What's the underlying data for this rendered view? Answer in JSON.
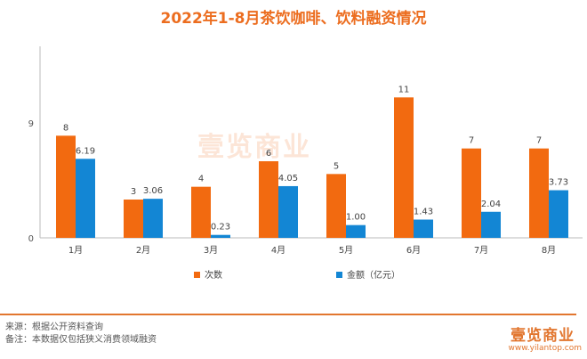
{
  "title": "2022年1-8月茶饮咖啡、饮料融资情况",
  "chart_data": {
    "type": "bar",
    "title": "2022年1-8月茶饮咖啡、饮料融资情况",
    "categories": [
      "1月",
      "2月",
      "3月",
      "4月",
      "5月",
      "6月",
      "7月",
      "8月"
    ],
    "series": [
      {
        "name": "次数",
        "values": [
          8,
          3,
          4,
          6,
          5,
          11,
          7,
          7
        ],
        "labels": [
          "8",
          "3",
          "4",
          "6",
          "5",
          "11",
          "7",
          "7"
        ],
        "color": "#f26a10"
      },
      {
        "name": "金额（亿元）",
        "values": [
          6.19,
          3.06,
          0.23,
          4.05,
          1.0,
          1.43,
          2.04,
          3.73
        ],
        "labels": [
          "6.19",
          "3.06",
          "0.23",
          "4.05",
          "1.00",
          "1.43",
          "2.04",
          "3.73"
        ],
        "color": "#1386d4"
      }
    ],
    "yticks": [
      "0",
      "9"
    ],
    "ylim": [
      0,
      15
    ],
    "grid": false,
    "legend": "bottom"
  },
  "watermark": "壹览商业",
  "footer": {
    "source": "来源：根据公开资料查询",
    "note": "备注：本数据仅包括狭义消费领域融资",
    "logo": "壹览商业",
    "url": "www.yilantop.com"
  }
}
